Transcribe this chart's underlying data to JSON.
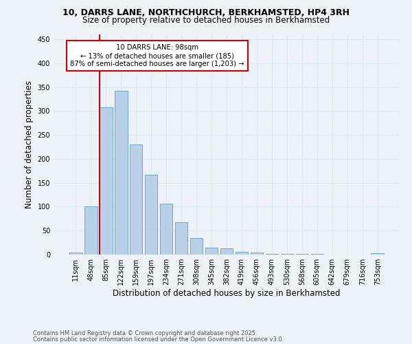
{
  "title_line1": "10, DARRS LANE, NORTHCHURCH, BERKHAMSTED, HP4 3RH",
  "title_line2": "Size of property relative to detached houses in Berkhamsted",
  "xlabel": "Distribution of detached houses by size in Berkhamsted",
  "ylabel": "Number of detached properties",
  "footnote1": "Contains HM Land Registry data © Crown copyright and database right 2025.",
  "footnote2": "Contains public sector information licensed under the Open Government Licence v3.0.",
  "bar_labels": [
    "11sqm",
    "48sqm",
    "85sqm",
    "122sqm",
    "159sqm",
    "197sqm",
    "234sqm",
    "271sqm",
    "308sqm",
    "345sqm",
    "382sqm",
    "419sqm",
    "456sqm",
    "493sqm",
    "530sqm",
    "568sqm",
    "605sqm",
    "642sqm",
    "679sqm",
    "716sqm",
    "753sqm"
  ],
  "bar_values": [
    4,
    101,
    307,
    342,
    230,
    167,
    106,
    68,
    35,
    14,
    13,
    6,
    4,
    2,
    1,
    1,
    1,
    0,
    0,
    0,
    3
  ],
  "bar_color": "#b8d0e8",
  "bar_edge_color": "#6aaad4",
  "vline_color": "#cc0000",
  "vline_index": 1.6,
  "annotation_text": "10 DARRS LANE: 98sqm\n← 13% of detached houses are smaller (185)\n87% of semi-detached houses are larger (1,203) →",
  "annotation_box_facecolor": "#ffffff",
  "annotation_box_edgecolor": "#cc0000",
  "ylim": [
    0,
    460
  ],
  "yticks": [
    0,
    50,
    100,
    150,
    200,
    250,
    300,
    350,
    400,
    450
  ],
  "grid_color": "#dce8f0",
  "background_color": "#edf2f8"
}
